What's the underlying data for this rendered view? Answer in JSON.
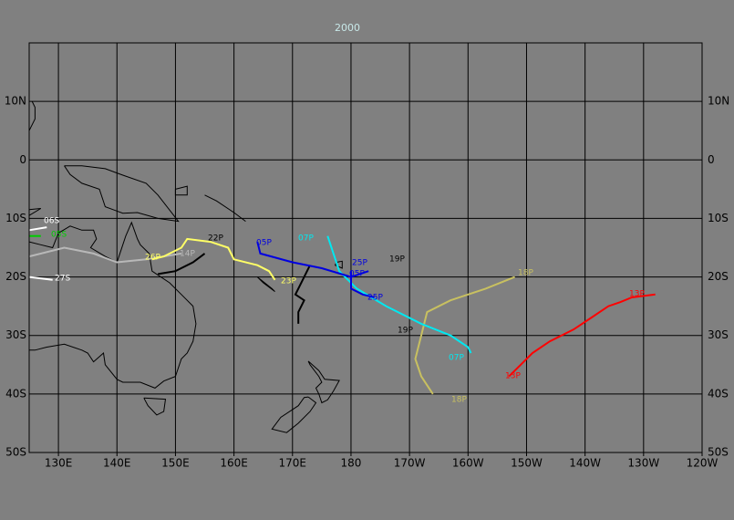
{
  "title": "2000",
  "lon_labels": [
    "130E",
    "140E",
    "150E",
    "160E",
    "170E",
    "180",
    "170W",
    "160W",
    "150W",
    "140W",
    "130W",
    "120W"
  ],
  "lat_labels": [
    "10N",
    "0",
    "10S",
    "20S",
    "30S",
    "40S",
    "50S"
  ],
  "track_labels": [
    "06S",
    "05S",
    "27S",
    "26P",
    "14P",
    "22P",
    "23P",
    "05P",
    "07P",
    "25P",
    "05P",
    "25P",
    "19P",
    "19P",
    "07P",
    "18P",
    "18P",
    "13P",
    "13P"
  ]
}
